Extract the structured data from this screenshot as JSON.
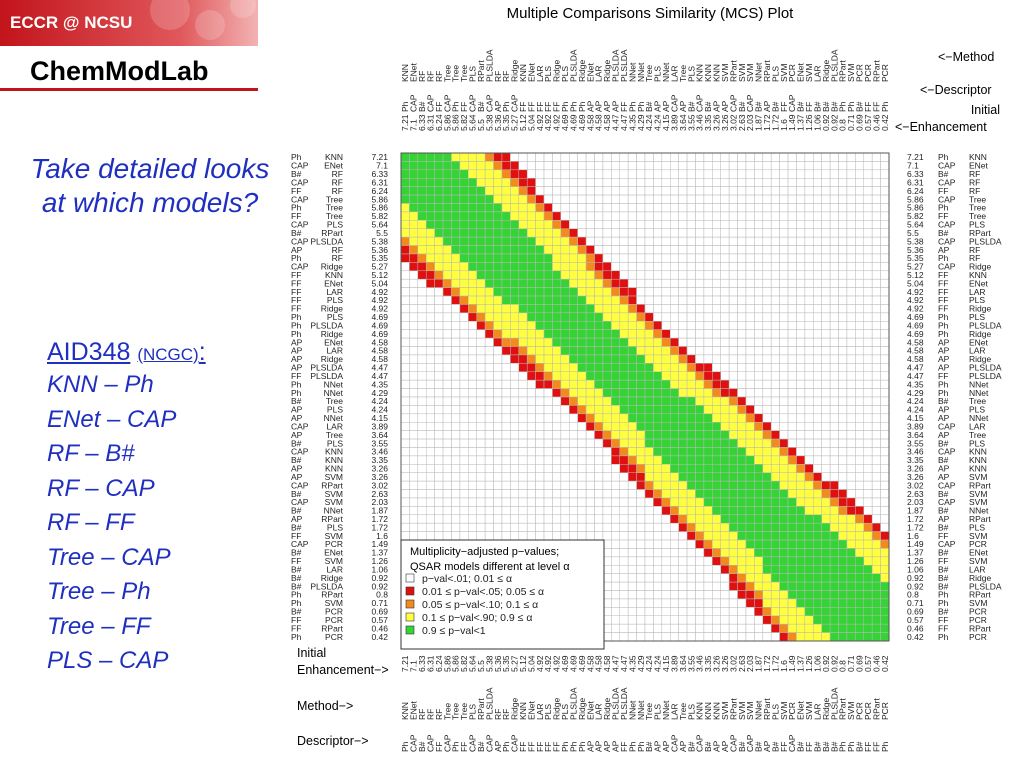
{
  "banner": {
    "label": "ECCR @ NCSU"
  },
  "brand": {
    "title": "ChemModLab"
  },
  "sidebar": {
    "question": "Take detailed looks at which models?",
    "assay": {
      "name": "AID348",
      "source": "(NCGC)",
      "suffix": ":"
    },
    "pairs": [
      "KNN – Ph",
      "ENet – CAP",
      "RF – B#",
      "RF – CAP",
      "RF – FF",
      "Tree – CAP",
      "Tree – Ph",
      "Tree – FF",
      "PLS – CAP"
    ]
  },
  "chart_data": {
    "type": "heatmap",
    "title": "Multiple Comparisons Similarity (MCS) Plot",
    "top_labels": {
      "method": "<−Method",
      "descriptor": "<−Descriptor",
      "enhancement_1": "Initial",
      "enhancement_2": "<−Enhancement"
    },
    "bottom_labels": {
      "enhancement_1": "Initial",
      "enhancement_2": "Enhancement−>",
      "method": "Method−>",
      "descriptor": "Descriptor−>"
    },
    "models": [
      {
        "method": "KNN",
        "descriptor": "Ph",
        "enh": "7.21"
      },
      {
        "method": "ENet",
        "descriptor": "CAP",
        "enh": "7.1"
      },
      {
        "method": "RF",
        "descriptor": "B#",
        "enh": "6.33"
      },
      {
        "method": "RF",
        "descriptor": "CAP",
        "enh": "6.31"
      },
      {
        "method": "RF",
        "descriptor": "FF",
        "enh": "6.24"
      },
      {
        "method": "Tree",
        "descriptor": "CAP",
        "enh": "5.86"
      },
      {
        "method": "Tree",
        "descriptor": "Ph",
        "enh": "5.86"
      },
      {
        "method": "Tree",
        "descriptor": "FF",
        "enh": "5.82"
      },
      {
        "method": "PLS",
        "descriptor": "CAP",
        "enh": "5.64"
      },
      {
        "method": "RPart",
        "descriptor": "B#",
        "enh": "5.5"
      },
      {
        "method": "PLSLDA",
        "descriptor": "CAP",
        "enh": "5.38"
      },
      {
        "method": "RF",
        "descriptor": "AP",
        "enh": "5.36"
      },
      {
        "method": "RF",
        "descriptor": "Ph",
        "enh": "5.35"
      },
      {
        "method": "Ridge",
        "descriptor": "CAP",
        "enh": "5.27"
      },
      {
        "method": "KNN",
        "descriptor": "FF",
        "enh": "5.12"
      },
      {
        "method": "ENet",
        "descriptor": "FF",
        "enh": "5.04"
      },
      {
        "method": "LAR",
        "descriptor": "FF",
        "enh": "4.92"
      },
      {
        "method": "PLS",
        "descriptor": "FF",
        "enh": "4.92"
      },
      {
        "method": "Ridge",
        "descriptor": "FF",
        "enh": "4.92"
      },
      {
        "method": "PLS",
        "descriptor": "Ph",
        "enh": "4.69"
      },
      {
        "method": "PLSLDA",
        "descriptor": "Ph",
        "enh": "4.69"
      },
      {
        "method": "Ridge",
        "descriptor": "Ph",
        "enh": "4.69"
      },
      {
        "method": "ENet",
        "descriptor": "AP",
        "enh": "4.58"
      },
      {
        "method": "LAR",
        "descriptor": "AP",
        "enh": "4.58"
      },
      {
        "method": "Ridge",
        "descriptor": "AP",
        "enh": "4.58"
      },
      {
        "method": "PLSLDA",
        "descriptor": "AP",
        "enh": "4.47"
      },
      {
        "method": "PLSLDA",
        "descriptor": "FF",
        "enh": "4.47"
      },
      {
        "method": "NNet",
        "descriptor": "Ph",
        "enh": "4.35"
      },
      {
        "method": "NNet",
        "descriptor": "Ph",
        "enh": "4.29"
      },
      {
        "method": "Tree",
        "descriptor": "B#",
        "enh": "4.24"
      },
      {
        "method": "PLS",
        "descriptor": "AP",
        "enh": "4.24"
      },
      {
        "method": "NNet",
        "descriptor": "AP",
        "enh": "4.15"
      },
      {
        "method": "LAR",
        "descriptor": "CAP",
        "enh": "3.89"
      },
      {
        "method": "Tree",
        "descriptor": "AP",
        "enh": "3.64"
      },
      {
        "method": "PLS",
        "descriptor": "B#",
        "enh": "3.55"
      },
      {
        "method": "KNN",
        "descriptor": "CAP",
        "enh": "3.46"
      },
      {
        "method": "KNN",
        "descriptor": "B#",
        "enh": "3.35"
      },
      {
        "method": "KNN",
        "descriptor": "AP",
        "enh": "3.26"
      },
      {
        "method": "SVM",
        "descriptor": "AP",
        "enh": "3.26"
      },
      {
        "method": "RPart",
        "descriptor": "CAP",
        "enh": "3.02"
      },
      {
        "method": "SVM",
        "descriptor": "B#",
        "enh": "2.63"
      },
      {
        "method": "SVM",
        "descriptor": "CAP",
        "enh": "2.03"
      },
      {
        "method": "NNet",
        "descriptor": "B#",
        "enh": "1.87"
      },
      {
        "method": "RPart",
        "descriptor": "AP",
        "enh": "1.72"
      },
      {
        "method": "PLS",
        "descriptor": "B#",
        "enh": "1.72"
      },
      {
        "method": "SVM",
        "descriptor": "FF",
        "enh": "1.6"
      },
      {
        "method": "PCR",
        "descriptor": "CAP",
        "enh": "1.49"
      },
      {
        "method": "ENet",
        "descriptor": "B#",
        "enh": "1.37"
      },
      {
        "method": "SVM",
        "descriptor": "FF",
        "enh": "1.26"
      },
      {
        "method": "LAR",
        "descriptor": "B#",
        "enh": "1.06"
      },
      {
        "method": "Ridge",
        "descriptor": "B#",
        "enh": "0.92"
      },
      {
        "method": "PLSLDA",
        "descriptor": "B#",
        "enh": "0.92"
      },
      {
        "method": "RPart",
        "descriptor": "Ph",
        "enh": "0.8"
      },
      {
        "method": "SVM",
        "descriptor": "Ph",
        "enh": "0.71"
      },
      {
        "method": "PCR",
        "descriptor": "B#",
        "enh": "0.69"
      },
      {
        "method": "PCR",
        "descriptor": "FF",
        "enh": "0.57"
      },
      {
        "method": "RPart",
        "descriptor": "FF",
        "enh": "0.46"
      },
      {
        "method": "PCR",
        "descriptor": "Ph",
        "enh": "0.42"
      }
    ],
    "legend": {
      "title_1": "Multiplicity−adjusted p−values;",
      "title_2": "QSAR models different at level α",
      "placement": "bottom-left",
      "items": [
        {
          "label": "p−val<.01;  0.01 ≤ α",
          "color": "#ffffff"
        },
        {
          "label": "0.01 ≤ p−val<.05;  0.05 ≤ α",
          "color": "#e01010"
        },
        {
          "label": "0.05 ≤ p−val<.10;    0.1 ≤ α",
          "color": "#f28a1e"
        },
        {
          "label": "0.1 ≤ p−val<.90;    0.9 ≤ α",
          "color": "#ffff40"
        },
        {
          "label": "0.9 ≤ p−val<1",
          "color": "#35d335"
        }
      ]
    },
    "grid": true
  }
}
